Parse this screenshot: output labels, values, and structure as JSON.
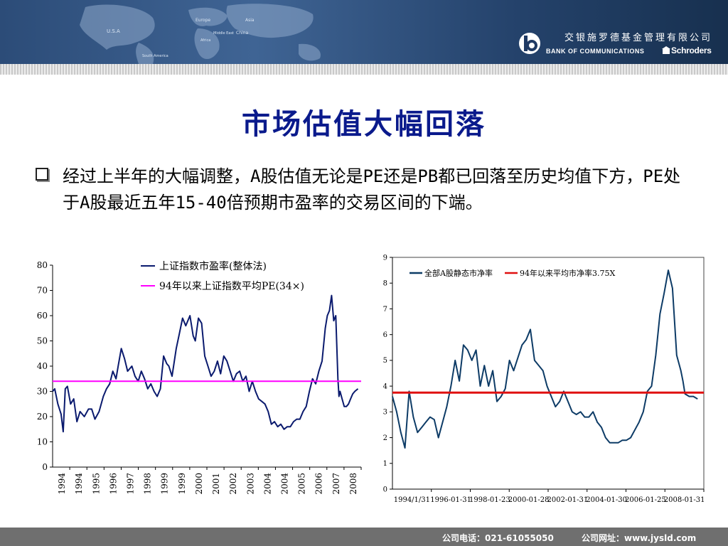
{
  "header": {
    "company_cn": "交银施罗德基金管理有限公司",
    "company_en": "BANK OF COMMUNICATIONS",
    "partner": "Schroders",
    "map_labels": [
      "U.S.A",
      "Europe",
      "Asia",
      "Middle East",
      "China",
      "Africa",
      "South America"
    ]
  },
  "slide": {
    "title": "市场估值大幅回落",
    "bullet": "经过上半年的大幅调整，A股估值无论是PE还是PB都已回落至历史均值下方，PE处于A股最近五年15-40倍预期市盈率的交易区间的下端。"
  },
  "footer": {
    "phone": "公司电话：021-61055050",
    "website": "公司网址：www.jysld.com"
  },
  "colors": {
    "title": "#0a1a8c",
    "series_primary": "#0a1a6e",
    "pe_avg": "#ff00ff",
    "pb_series": "#0d3b66",
    "pb_avg": "#e01010"
  },
  "chart_data": [
    {
      "type": "line",
      "ylim": [
        0,
        80
      ],
      "y_ticks": [
        0,
        10,
        20,
        30,
        40,
        50,
        60,
        70,
        80
      ],
      "x_tick_labels": [
        "1994",
        "1994",
        "1995",
        "1996",
        "1997",
        "1998",
        "1999",
        "1999",
        "2000",
        "2001",
        "2002",
        "2003",
        "2004",
        "2004",
        "2005",
        "2006",
        "2007",
        "2008"
      ],
      "xlim": [
        1994.0,
        2008.6
      ],
      "series": [
        {
          "name": "上证指数市盈率(整体法)",
          "x": [
            1994.0,
            1994.1,
            1994.25,
            1994.4,
            1994.5,
            1994.6,
            1994.7,
            1994.85,
            1995.0,
            1995.15,
            1995.3,
            1995.5,
            1995.7,
            1995.85,
            1996.0,
            1996.2,
            1996.4,
            1996.55,
            1996.7,
            1996.85,
            1997.0,
            1997.1,
            1997.25,
            1997.4,
            1997.55,
            1997.75,
            1997.9,
            1998.05,
            1998.2,
            1998.35,
            1998.5,
            1998.65,
            1998.8,
            1998.95,
            1999.1,
            1999.25,
            1999.4,
            1999.5,
            1999.65,
            1999.85,
            2000.0,
            2000.15,
            2000.3,
            2000.5,
            2000.65,
            2000.75,
            2000.9,
            2001.05,
            2001.2,
            2001.35,
            2001.5,
            2001.65,
            2001.8,
            2001.95,
            2002.1,
            2002.25,
            2002.4,
            2002.55,
            2002.7,
            2002.85,
            2003.0,
            2003.15,
            2003.3,
            2003.45,
            2003.6,
            2003.75,
            2003.9,
            2004.05,
            2004.2,
            2004.35,
            2004.5,
            2004.65,
            2004.8,
            2004.95,
            2005.1,
            2005.25,
            2005.4,
            2005.55,
            2005.7,
            2005.85,
            2006.0,
            2006.15,
            2006.3,
            2006.45,
            2006.6,
            2006.75,
            2006.9,
            2007.0,
            2007.1,
            2007.2,
            2007.3,
            2007.4,
            2007.5,
            2007.55,
            2007.6,
            2007.7,
            2007.8,
            2007.9,
            2008.0,
            2008.1,
            2008.2,
            2008.3,
            2008.45
          ],
          "y": [
            30,
            31,
            25,
            21,
            14,
            31,
            32,
            25,
            27,
            18,
            22,
            20,
            23,
            23,
            19,
            22,
            28,
            31,
            33,
            38,
            35,
            40,
            47,
            43,
            38,
            40,
            36,
            34,
            38,
            35,
            31,
            33,
            30,
            28,
            31,
            44,
            41,
            40,
            36,
            47,
            53,
            59,
            56,
            60,
            52,
            50,
            59,
            57,
            44,
            40,
            36,
            38,
            42,
            37,
            44,
            42,
            38,
            34,
            37,
            38,
            34,
            36,
            30,
            34,
            30,
            27,
            26,
            25,
            22,
            17,
            18,
            16,
            17,
            15,
            16,
            16,
            18,
            19,
            19,
            22,
            24,
            30,
            35,
            33,
            38,
            42,
            55,
            60,
            62,
            68,
            58,
            60,
            35,
            28,
            30,
            27,
            24,
            24,
            25,
            27,
            29,
            30,
            31
          ],
          "color": "#0a1a6e"
        },
        {
          "name": "94年以来上证指数平均PE(34×)",
          "x": [
            1994.0,
            2008.6
          ],
          "y": [
            34,
            34
          ],
          "color": "#ff00ff"
        }
      ]
    },
    {
      "type": "line",
      "ylim": [
        0,
        9
      ],
      "y_ticks": [
        0,
        1,
        2,
        3,
        4,
        5,
        6,
        7,
        8,
        9
      ],
      "x_tick_labels": [
        "1994/1/31",
        "1996-01-31",
        "1998-01-23",
        "2000-01-28",
        "2002-01-31",
        "2004-01-30",
        "2006-01-25",
        "2008-01-31"
      ],
      "xlim": [
        1994.0,
        2008.9
      ],
      "series": [
        {
          "name": "全部A股静态市净率",
          "x": [
            1994.0,
            1994.2,
            1994.4,
            1994.6,
            1994.8,
            1995.0,
            1995.2,
            1995.4,
            1995.6,
            1995.8,
            1996.0,
            1996.2,
            1996.4,
            1996.6,
            1996.8,
            1997.0,
            1997.2,
            1997.4,
            1997.6,
            1997.8,
            1998.0,
            1998.2,
            1998.4,
            1998.6,
            1998.8,
            1999.0,
            1999.2,
            1999.4,
            1999.6,
            1999.8,
            2000.0,
            2000.2,
            2000.4,
            2000.6,
            2000.8,
            2001.0,
            2001.2,
            2001.4,
            2001.6,
            2001.8,
            2002.0,
            2002.2,
            2002.4,
            2002.6,
            2002.8,
            2003.0,
            2003.2,
            2003.4,
            2003.6,
            2003.8,
            2004.0,
            2004.2,
            2004.4,
            2004.6,
            2004.8,
            2005.0,
            2005.2,
            2005.4,
            2005.6,
            2005.8,
            2006.0,
            2006.2,
            2006.4,
            2006.6,
            2006.8,
            2007.0,
            2007.2,
            2007.4,
            2007.6,
            2007.8,
            2007.9,
            2008.0,
            2008.2,
            2008.4,
            2008.6
          ],
          "y": [
            3.6,
            3.0,
            2.2,
            1.6,
            3.8,
            2.8,
            2.2,
            2.4,
            2.6,
            2.8,
            2.7,
            2.0,
            2.6,
            3.2,
            4.0,
            5.0,
            4.2,
            5.6,
            5.4,
            5.0,
            5.4,
            4.0,
            4.8,
            4.0,
            4.6,
            3.4,
            3.6,
            3.9,
            5.0,
            4.6,
            5.1,
            5.6,
            5.8,
            6.2,
            5.0,
            4.8,
            4.6,
            4.0,
            3.6,
            3.2,
            3.4,
            3.8,
            3.4,
            3.0,
            2.9,
            3.0,
            2.8,
            2.8,
            3.0,
            2.6,
            2.4,
            2.0,
            1.8,
            1.8,
            1.8,
            1.9,
            1.9,
            2.0,
            2.3,
            2.6,
            3.0,
            3.8,
            4.0,
            5.2,
            6.8,
            7.6,
            8.5,
            7.8,
            5.2,
            4.6,
            4.2,
            3.7,
            3.6,
            3.6,
            3.5
          ],
          "color": "#0d3b66"
        },
        {
          "name": "94年以来平均市净率3.75X",
          "x": [
            1994.0,
            2008.9
          ],
          "y": [
            3.75,
            3.75
          ],
          "color": "#e01010"
        }
      ]
    }
  ]
}
